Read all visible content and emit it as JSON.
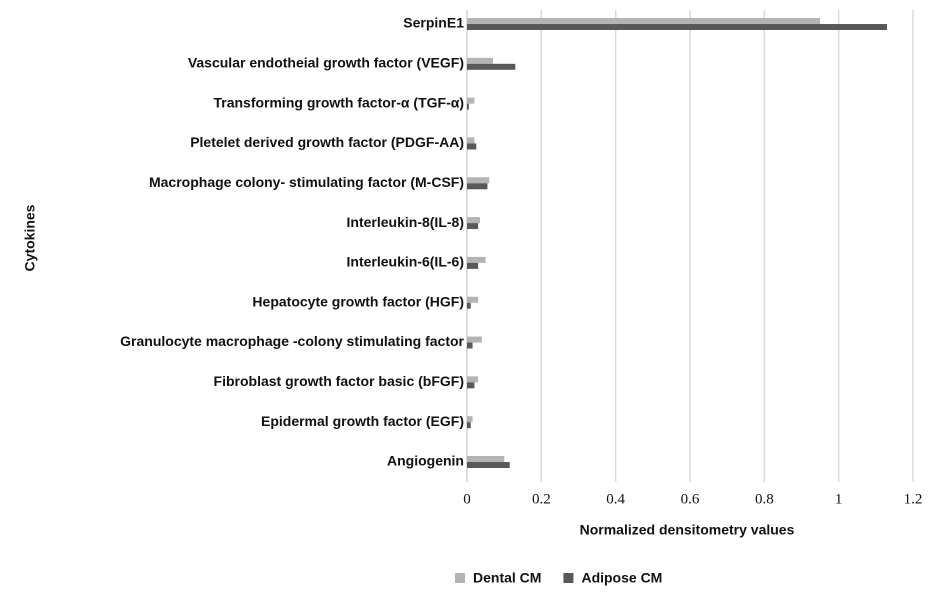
{
  "chart_data": {
    "type": "barh",
    "categories": [
      "SerpinE1",
      "Vascular endotheial growth factor (VEGF)",
      "Transforming growth factor-α (TGF-α)",
      "Pletelet derived growth factor (PDGF-AA)",
      "Macrophage colony- stimulating factor (M-CSF)",
      "Interleukin-8(IL-8)",
      "Interleukin-6(IL-6)",
      "Hepatocyte growth factor (HGF)",
      "Granulocyte macrophage -colony stimulating factor",
      "Fibroblast growth factor basic (bFGF)",
      "Epidermal growth factor (EGF)",
      "Angiogenin"
    ],
    "series": [
      {
        "name": "Dental CM",
        "color": "#b4b4b4",
        "values": [
          0.95,
          0.07,
          0.02,
          0.02,
          0.06,
          0.035,
          0.05,
          0.03,
          0.04,
          0.03,
          0.015,
          0.1
        ]
      },
      {
        "name": "Adipose CM",
        "color": "#595959",
        "values": [
          1.13,
          0.13,
          0.005,
          0.025,
          0.055,
          0.03,
          0.03,
          0.01,
          0.015,
          0.02,
          0.01,
          0.115
        ]
      }
    ],
    "xlim": [
      0,
      1.2
    ],
    "xticks": [
      0,
      0.2,
      0.4,
      0.6,
      0.8,
      1,
      1.2
    ],
    "grid": true,
    "xlabel": "Normalized densitometry values",
    "ylabel": "Cytokines",
    "legend": "bottom"
  }
}
